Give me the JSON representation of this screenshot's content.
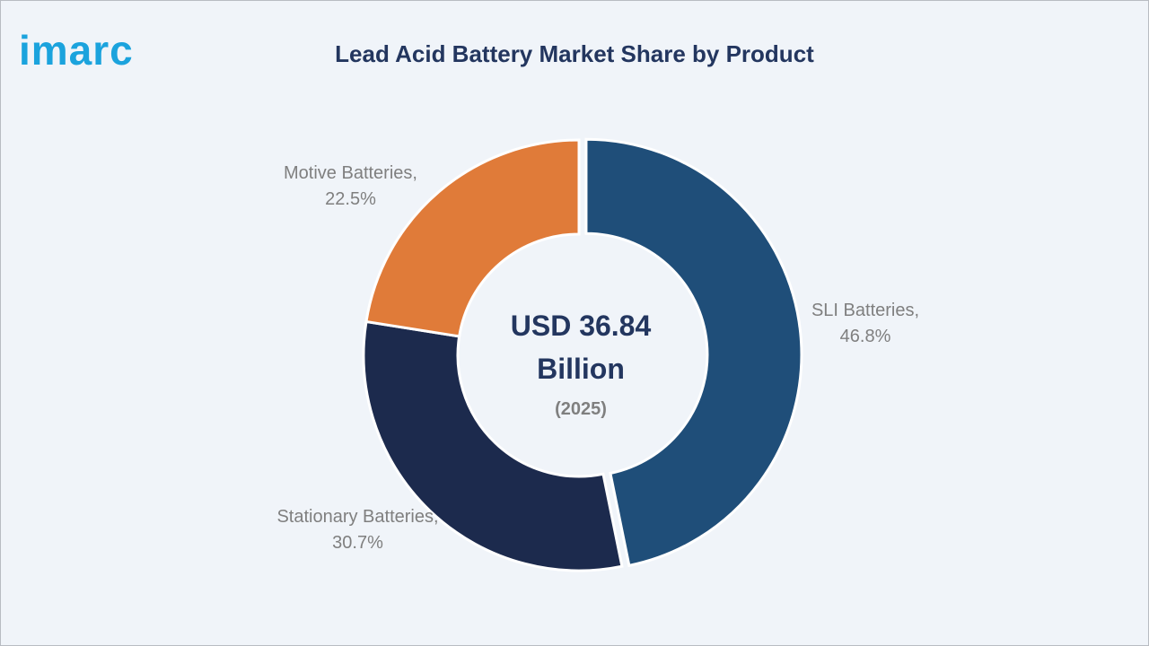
{
  "logo": "imarc",
  "chart_data": {
    "type": "donut",
    "title": "Lead Acid Battery Market Share by Product",
    "center_label": "USD 36.84 Billion",
    "center_sublabel": "(2025)",
    "values": [
      46.8,
      30.7,
      22.5
    ],
    "value_labels": [
      "SLI Batteries, 46.8%",
      "Stationary Batteries, 30.7%",
      "Motive Batteries, 22.5%"
    ],
    "colors": [
      "#1f4e79",
      "#1c2a4d",
      "#e07b39"
    ]
  }
}
